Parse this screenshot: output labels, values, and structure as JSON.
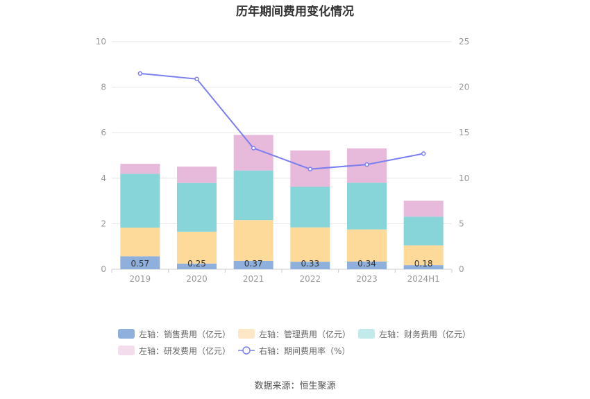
{
  "chart_data": {
    "type": "bar",
    "title": "历年期间费用变化情况",
    "categories": [
      "2019",
      "2020",
      "2021",
      "2022",
      "2023",
      "2024H1"
    ],
    "stacked": true,
    "left_axis": {
      "ylim": [
        0,
        10
      ],
      "ticks": [
        "0",
        "2",
        "4",
        "6",
        "8",
        "10"
      ]
    },
    "right_axis": {
      "ylim": [
        0,
        25
      ],
      "ticks": [
        "0",
        "5",
        "10",
        "15",
        "20",
        "25"
      ]
    },
    "series": [
      {
        "name": "左轴：销售费用（亿元）",
        "axis": "left",
        "color": "#8fb0dc",
        "values": [
          0.57,
          0.25,
          0.37,
          0.33,
          0.34,
          0.18
        ],
        "labels": [
          "0.57",
          "0.25",
          "0.37",
          "0.33",
          "0.34",
          "0.18"
        ]
      },
      {
        "name": "左轴：管理费用（亿元）",
        "axis": "left",
        "color": "#fdd99a",
        "values": [
          1.26,
          1.4,
          1.79,
          1.51,
          1.41,
          0.87
        ]
      },
      {
        "name": "左轴：财务费用（亿元）",
        "axis": "left",
        "color": "#88d5d9",
        "values": [
          2.36,
          2.14,
          2.18,
          1.79,
          2.05,
          1.26
        ]
      },
      {
        "name": "左轴：研发费用（亿元）",
        "axis": "left",
        "color": "#e7b9da",
        "values": [
          0.44,
          0.72,
          1.56,
          1.59,
          1.51,
          0.7
        ]
      },
      {
        "name": "右轴：期间费用率（%）",
        "axis": "right",
        "type": "line",
        "color": "#7b7ff0",
        "values": [
          21.5,
          20.9,
          13.3,
          11.0,
          11.5,
          12.7
        ]
      }
    ],
    "source": "数据来源：恒生聚源"
  }
}
